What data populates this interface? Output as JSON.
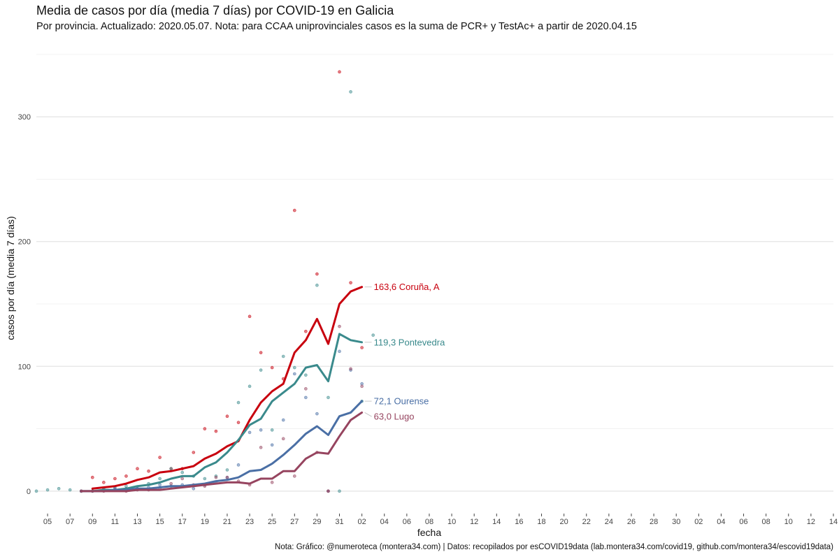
{
  "chart_data": {
    "type": "line",
    "title": "Media de casos por día (media 7 días) por COVID-19 en Galicia",
    "subtitle": "Por provincia. Actualizado: 2020.05.07. Nota: para CCAA uniprovinciales casos es la suma de PCR+ y TestAc+ a partir de 2020.04.15",
    "caption": "Nota: Gráfico: @numeroteca (montera34.com) | Datos: recopilados por esCOVID19data (lab.montera34.com/covid19, github.com/montera34/escovid19data)",
    "xlabel": "fecha",
    "ylabel": "casos por día (media 7 días)",
    "x_range": [
      "2020-03-04",
      "2020-05-14"
    ],
    "ylim": [
      -18,
      360
    ],
    "y_ticks": [
      0,
      100,
      200,
      300
    ],
    "x_ticks": [
      "2020-03-05",
      "2020-03-07",
      "2020-03-09",
      "2020-03-11",
      "2020-03-13",
      "2020-03-15",
      "2020-03-17",
      "2020-03-19",
      "2020-03-21",
      "2020-03-23",
      "2020-03-25",
      "2020-03-27",
      "2020-03-29",
      "2020-03-31",
      "2020-04-02",
      "2020-04-04",
      "2020-04-06",
      "2020-04-08",
      "2020-04-10",
      "2020-04-12",
      "2020-04-14",
      "2020-04-16",
      "2020-04-18",
      "2020-04-20",
      "2020-04-22",
      "2020-04-24",
      "2020-04-26",
      "2020-04-28",
      "2020-04-30",
      "2020-05-02",
      "2020-05-04",
      "2020-05-06",
      "2020-05-08",
      "2020-05-10",
      "2020-05-12",
      "2020-05-14"
    ],
    "x_tick_labels": [
      "05",
      "07",
      "09",
      "11",
      "13",
      "15",
      "17",
      "19",
      "21",
      "23",
      "25",
      "27",
      "29",
      "31",
      "02",
      "04",
      "06",
      "08",
      "10",
      "12",
      "14",
      "16",
      "18",
      "20",
      "22",
      "24",
      "26",
      "28",
      "30",
      "02",
      "04",
      "06",
      "08",
      "10",
      "12",
      "14"
    ],
    "grid": true,
    "series": [
      {
        "name": "Coruña, A",
        "end_label": "163,6 Coruña, A",
        "color": "#c8000e",
        "line": {
          "start": "2020-03-09",
          "values": [
            2,
            3,
            4,
            6,
            9,
            11,
            15,
            16,
            18,
            20,
            26,
            30,
            36,
            40,
            57,
            71,
            80,
            86,
            111,
            121,
            138,
            118,
            150,
            160,
            163.6
          ]
        },
        "points": {
          "start": "2020-03-08",
          "values": [
            0,
            11,
            7,
            10,
            12,
            18,
            16,
            27,
            18,
            18,
            31,
            50,
            48,
            60,
            55,
            140,
            111,
            99,
            90,
            225,
            128,
            174,
            0,
            336,
            167,
            115
          ]
        }
      },
      {
        "name": "Pontevedra",
        "end_label": "119,3 Pontevedra",
        "color": "#3a8a8c",
        "line": {
          "start": "2020-03-08",
          "values": [
            0,
            0,
            1,
            1,
            2,
            4,
            5,
            7,
            10,
            12,
            12,
            19,
            23,
            31,
            41,
            53,
            58,
            72,
            79,
            86,
            99,
            101,
            88,
            126,
            121,
            119.3
          ]
        },
        "points": {
          "start": "2020-03-04",
          "values": [
            0,
            1,
            2,
            1,
            0,
            0,
            2,
            3,
            4,
            2,
            6,
            10,
            18,
            15,
            12,
            10,
            12,
            17,
            71,
            84,
            97,
            49,
            108,
            99,
            93,
            165,
            75,
            0,
            320,
            72,
            125
          ]
        }
      },
      {
        "name": "Ourense",
        "end_label": "72,1 Ourense",
        "color": "#4a6fa5",
        "line": {
          "start": "2020-03-08",
          "values": [
            0,
            0,
            0,
            1,
            1,
            2,
            2,
            3,
            4,
            4,
            5,
            6,
            8,
            9,
            11,
            16,
            17,
            22,
            29,
            37,
            46,
            52,
            45,
            60,
            63,
            72.1
          ]
        },
        "points": {
          "start": "2020-03-08",
          "values": [
            0,
            0,
            1,
            2,
            2,
            2,
            3,
            5,
            4,
            5,
            2,
            5,
            7,
            11,
            21,
            47,
            49,
            37,
            57,
            94,
            75,
            62,
            0,
            112,
            97,
            86
          ]
        }
      },
      {
        "name": "Lugo",
        "end_label": "63,0 Lugo",
        "color": "#96445f",
        "line": {
          "start": "2020-03-08",
          "values": [
            0,
            0,
            0,
            0,
            0,
            1,
            1,
            1,
            2,
            3,
            4,
            5,
            6,
            7,
            7,
            6,
            10,
            10,
            16,
            16,
            26,
            31,
            30,
            44,
            57,
            63
          ]
        },
        "points": {
          "start": "2020-03-08",
          "values": [
            0,
            0,
            0,
            1,
            0,
            1,
            1,
            2,
            6,
            10,
            5,
            4,
            11,
            11,
            8,
            5,
            35,
            7,
            42,
            12,
            82,
            31,
            0,
            132,
            98,
            84
          ]
        }
      }
    ]
  }
}
